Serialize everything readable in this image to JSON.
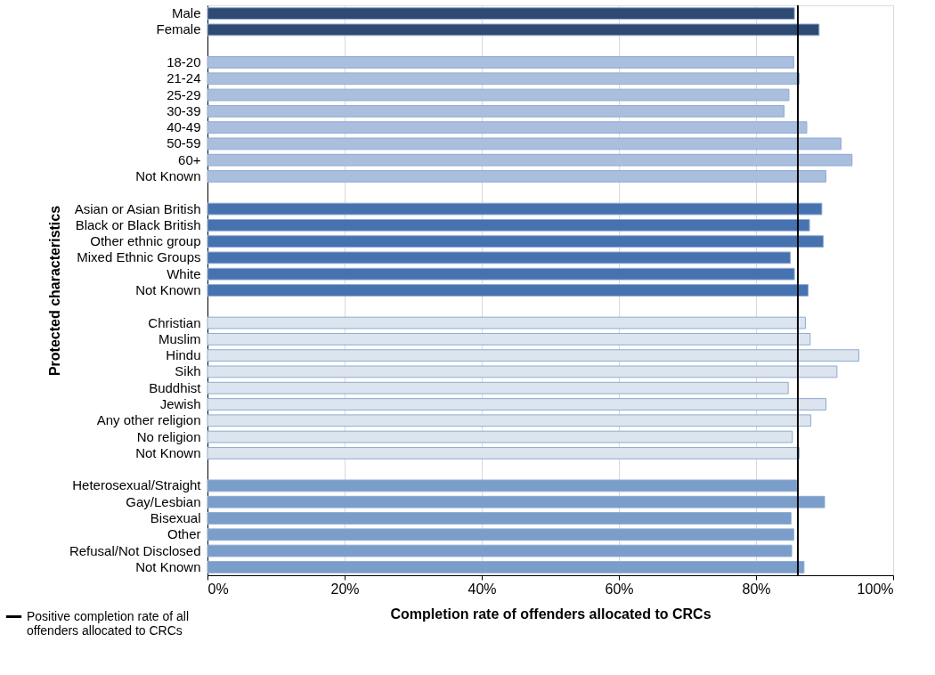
{
  "chart_data": {
    "type": "bar",
    "orientation": "horizontal",
    "xlabel": "Completion rate of offenders allocated to CRCs",
    "ylabel": "Protected characteristics",
    "categories": [
      "Male",
      "Female",
      null,
      "18-20",
      "21-24",
      "25-29",
      "30-39",
      "40-49",
      "50-59",
      "60+",
      "Not Known",
      null,
      "Asian or Asian British",
      "Black or Black British",
      "Other ethnic group",
      "Mixed Ethnic Groups",
      "White",
      "Not Known",
      null,
      "Christian",
      "Muslim",
      "Hindu",
      "Sikh",
      "Buddhist",
      "Jewish",
      "Any other religion",
      "No religion",
      "Not Known",
      null,
      "Heterosexual/Straight",
      "Gay/Lesbian",
      "Bisexual",
      "Other",
      "Refusal/Not Disclosed",
      "Not Known"
    ],
    "values": [
      85.6,
      89.2,
      null,
      85.5,
      86.3,
      84.8,
      84.1,
      87.4,
      92.4,
      94.0,
      90.2,
      null,
      89.6,
      87.8,
      89.8,
      85.0,
      85.6,
      87.6,
      null,
      87.2,
      87.9,
      95.0,
      91.8,
      84.7,
      90.2,
      88.0,
      85.3,
      86.3,
      null,
      85.9,
      90.0,
      85.1,
      85.5,
      85.2,
      87.0
    ],
    "colors": [
      "#2e4a72",
      "#2e4a72",
      null,
      "#a9bfdd",
      "#a9bfdd",
      "#a9bfdd",
      "#a9bfdd",
      "#a9bfdd",
      "#a9bfdd",
      "#a9bfdd",
      "#a9bfdd",
      null,
      "#4672b0",
      "#4672b0",
      "#4672b0",
      "#4672b0",
      "#4672b0",
      "#4672b0",
      null,
      "#dce4ef",
      "#dce4ef",
      "#dce4ef",
      "#dce4ef",
      "#dce4ef",
      "#dce4ef",
      "#dce4ef",
      "#dce4ef",
      "#dce4ef",
      null,
      "#7a9dc9",
      "#7a9dc9",
      "#7a9dc9",
      "#7a9dc9",
      "#7a9dc9",
      "#7a9dc9"
    ],
    "xlim": [
      0,
      100
    ],
    "xticks": [
      {
        "value": 0,
        "label": "0%"
      },
      {
        "value": 20,
        "label": "20%"
      },
      {
        "value": 40,
        "label": "40%"
      },
      {
        "value": 60,
        "label": "60%"
      },
      {
        "value": 80,
        "label": "80%"
      },
      {
        "value": 100,
        "label": "100%"
      }
    ],
    "ref_lines": [
      {
        "axis": "x",
        "value": 86.1,
        "label": "Positive completion rate of all offenders allocated to CRCs",
        "color": "#000000"
      }
    ],
    "grid": "x",
    "legend": "bottom left"
  }
}
